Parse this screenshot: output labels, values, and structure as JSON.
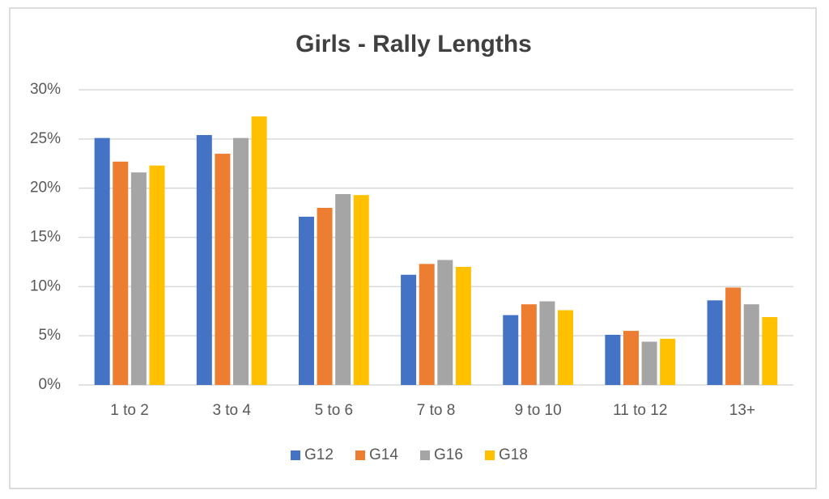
{
  "chart_data": {
    "type": "bar",
    "title": "Girls - Rally Lengths",
    "categories": [
      "1 to 2",
      "3 to 4",
      "5 to 6",
      "7 to 8",
      "9 to 10",
      "11 to 12",
      "13+"
    ],
    "series": [
      {
        "name": "G12",
        "color": "#4472c4",
        "values": [
          25.1,
          25.4,
          17.1,
          11.2,
          7.1,
          5.1,
          8.6
        ]
      },
      {
        "name": "G14",
        "color": "#ed7d31",
        "values": [
          22.7,
          23.5,
          18.0,
          12.3,
          8.2,
          5.5,
          9.9
        ]
      },
      {
        "name": "G16",
        "color": "#a5a5a5",
        "values": [
          21.6,
          25.1,
          19.4,
          12.7,
          8.5,
          4.4,
          8.2
        ]
      },
      {
        "name": "G18",
        "color": "#ffc000",
        "values": [
          22.3,
          27.3,
          19.3,
          12.0,
          7.6,
          4.7,
          6.9
        ]
      }
    ],
    "ylim": [
      0,
      30
    ],
    "yticks": [
      {
        "value": 0,
        "label": "0%"
      },
      {
        "value": 5,
        "label": "5%"
      },
      {
        "value": 10,
        "label": "10%"
      },
      {
        "value": 15,
        "label": "15%"
      },
      {
        "value": 20,
        "label": "20%"
      },
      {
        "value": 25,
        "label": "25%"
      },
      {
        "value": 30,
        "label": "30%"
      }
    ],
    "grid": true,
    "legend": "bottom"
  }
}
